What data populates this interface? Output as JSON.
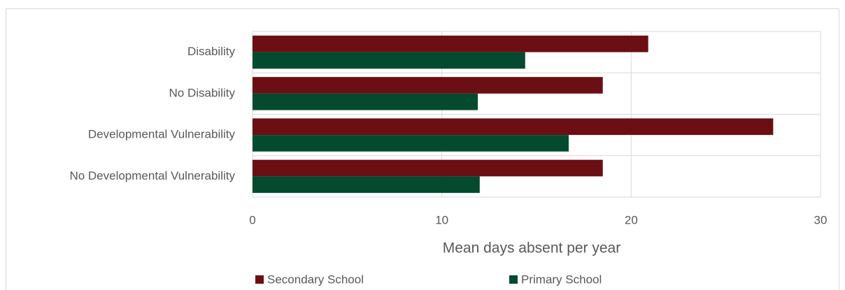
{
  "chart_data": {
    "type": "hbar",
    "x_label": "Mean days absent per year",
    "categories": [
      "Disability",
      "No Disability",
      "Developmental Vulnerability",
      "No Developmental Vulnerability"
    ],
    "series": [
      {
        "name": "Secondary School",
        "color": "#6b0f14",
        "values": [
          20.9,
          18.5,
          27.5,
          18.5
        ]
      },
      {
        "name": "Primary School",
        "color": "#034a2f",
        "values": [
          14.4,
          11.9,
          16.7,
          12.0
        ]
      }
    ],
    "xlim": [
      0,
      30
    ],
    "xticks": [
      0,
      10,
      20,
      30
    ],
    "grid": true,
    "legend": "bottom"
  }
}
